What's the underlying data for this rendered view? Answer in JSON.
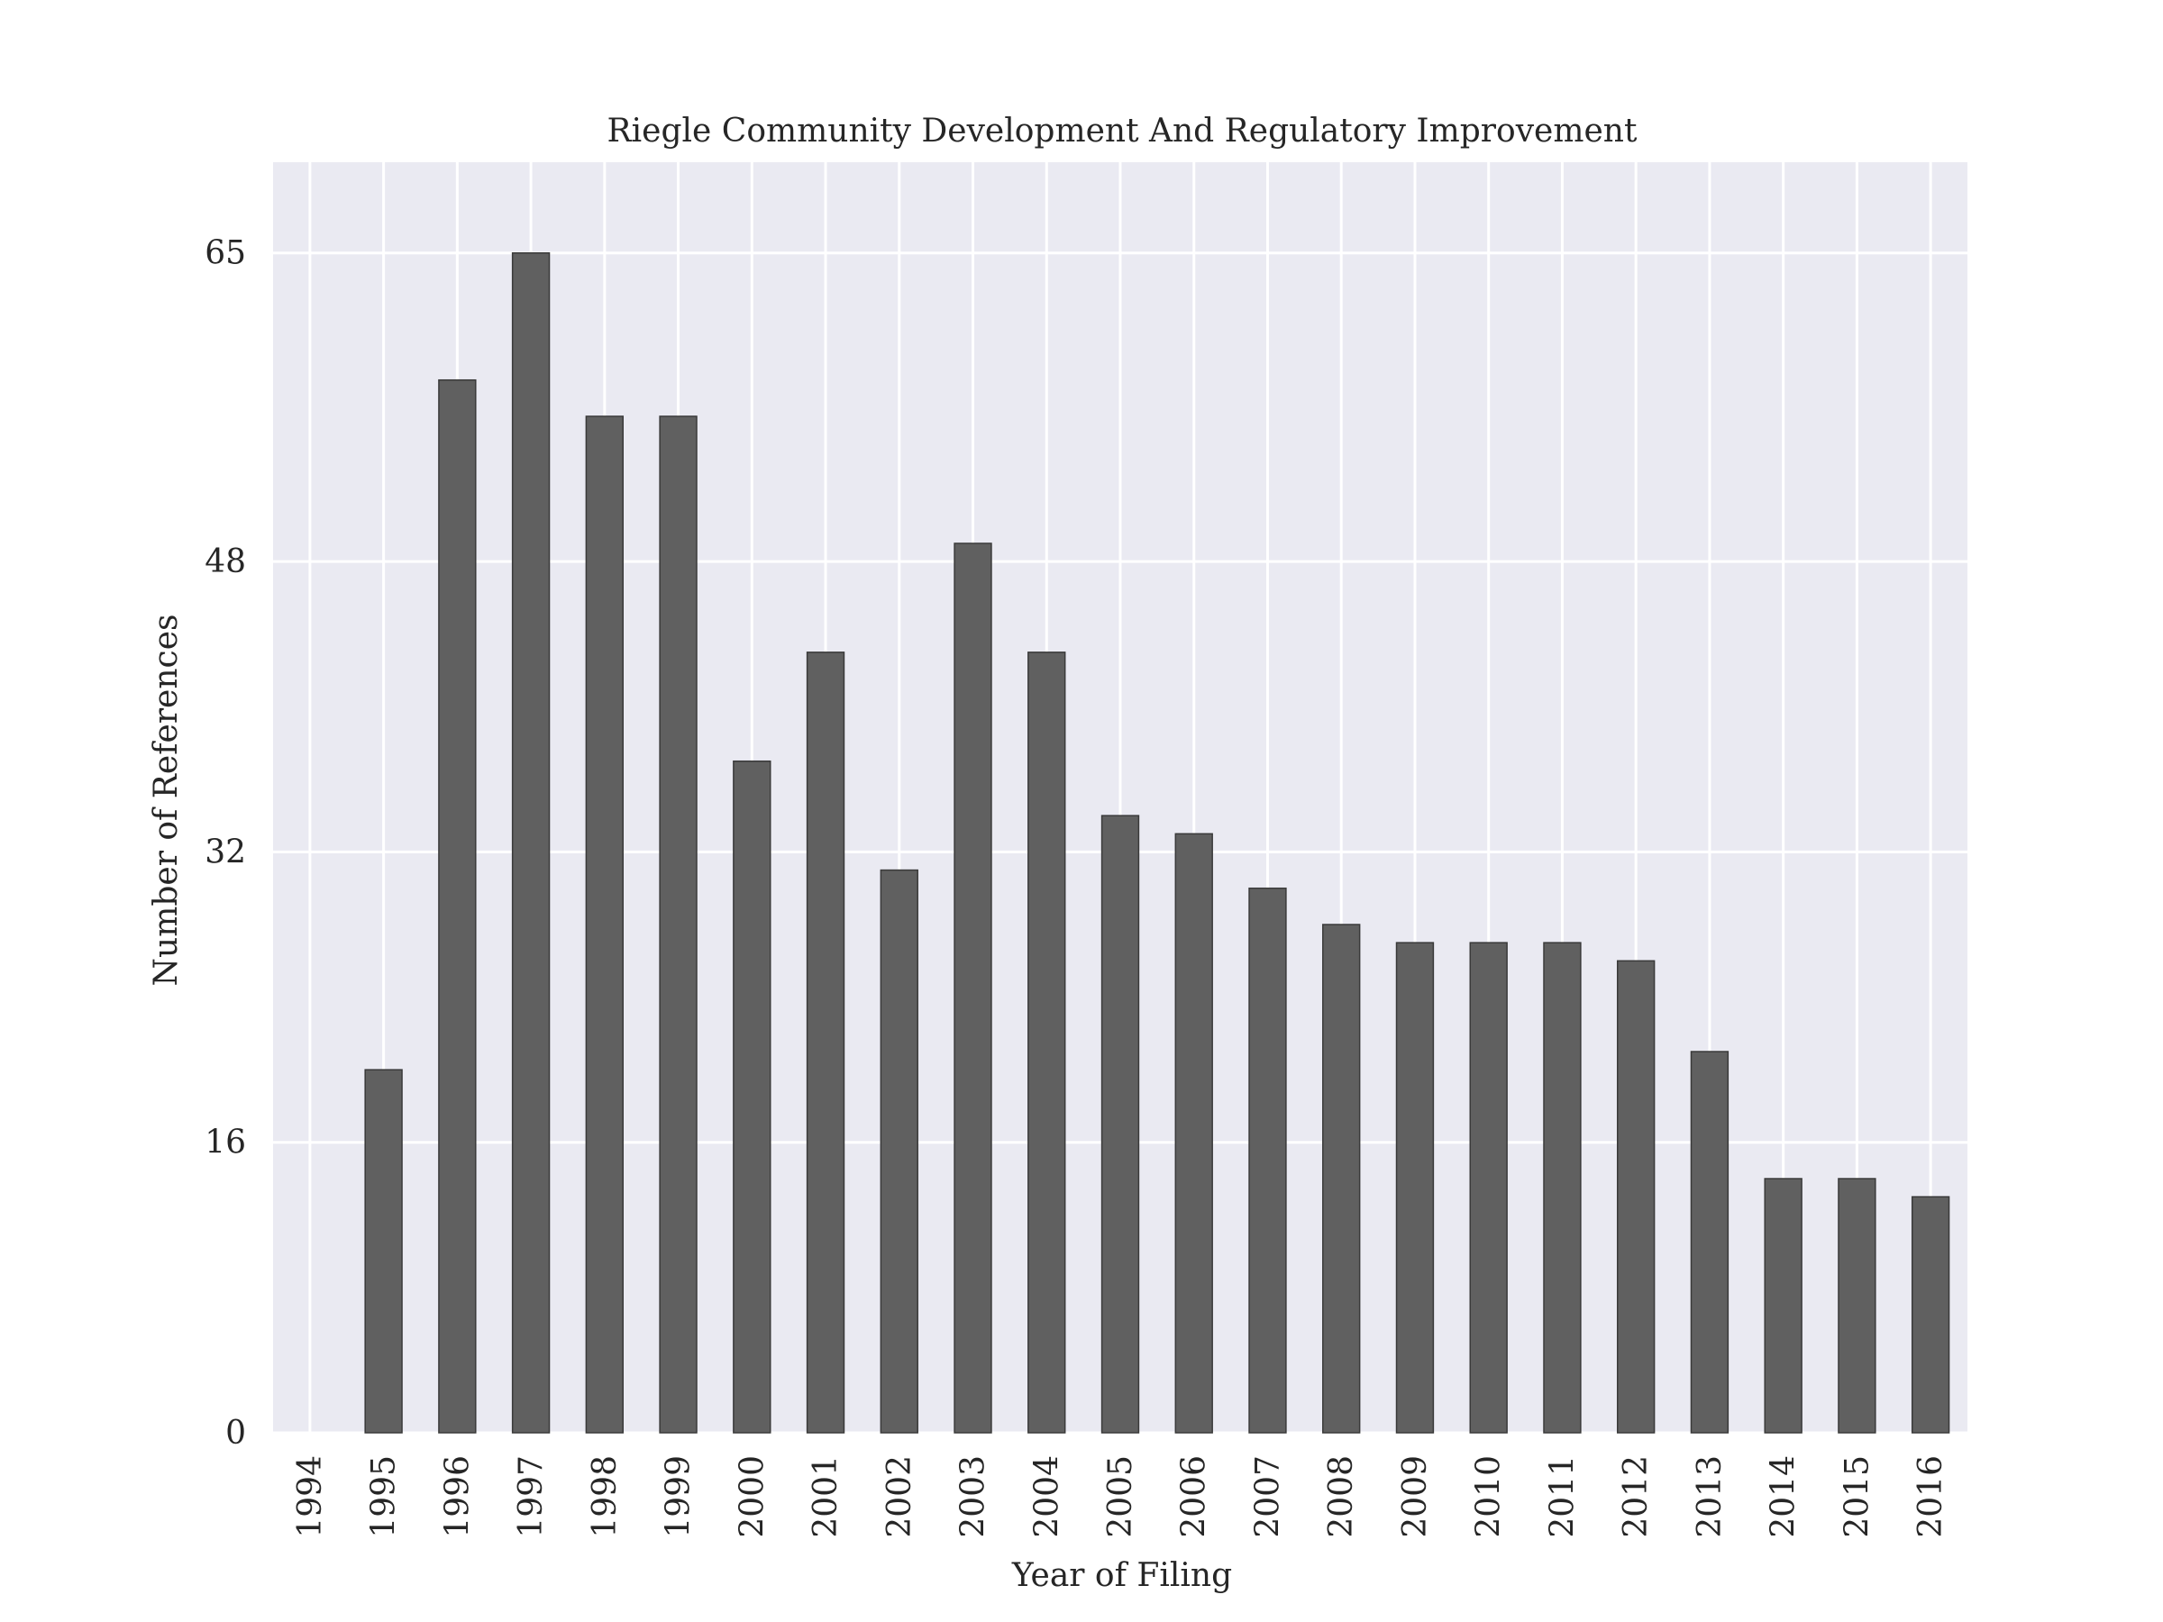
{
  "chart_data": {
    "type": "bar",
    "title": "Riegle Community Development And Regulatory Improvement",
    "xlabel": "Year of Filing",
    "ylabel": "Number of References",
    "categories": [
      "1994",
      "1995",
      "1996",
      "1997",
      "1998",
      "1999",
      "2000",
      "2001",
      "2002",
      "2003",
      "2004",
      "2005",
      "2006",
      "2007",
      "2008",
      "2009",
      "2010",
      "2011",
      "2012",
      "2013",
      "2014",
      "2015",
      "2016"
    ],
    "values": [
      0,
      20,
      58,
      65,
      56,
      56,
      37,
      43,
      31,
      49,
      43,
      34,
      33,
      30,
      28,
      27,
      27,
      27,
      26,
      21,
      14,
      14,
      13
    ],
    "yticks": [
      0,
      16,
      32,
      48,
      65
    ],
    "ylim": [
      0,
      70
    ],
    "grid": true,
    "colors": {
      "background": "#eaeaf2",
      "bar": "#606060",
      "bar_edge": "#3a3a3a",
      "grid": "#ffffff",
      "text": "#262626"
    }
  }
}
